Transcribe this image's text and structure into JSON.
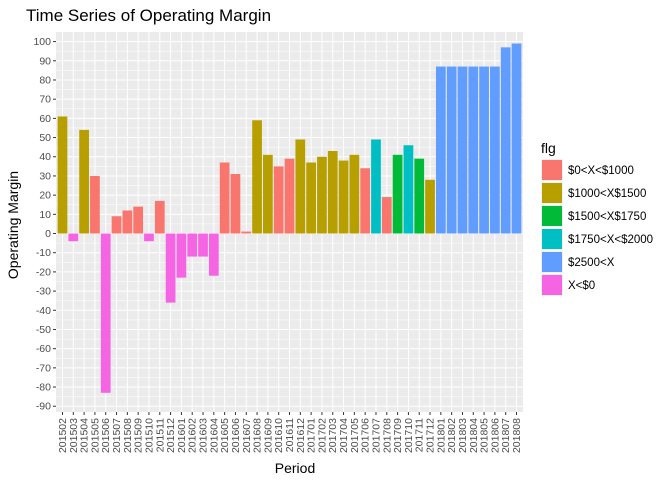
{
  "chart_data": {
    "type": "bar",
    "title": "Time Series of Operating Margin",
    "xlabel": "Period",
    "ylabel": "Operating Margin",
    "ylim": [
      -93,
      105
    ],
    "yticks": [
      -90,
      -80,
      -70,
      -60,
      -50,
      -40,
      -30,
      -20,
      -10,
      0,
      10,
      20,
      30,
      40,
      50,
      60,
      70,
      80,
      90,
      100
    ],
    "grid": true,
    "legend_title": "flg",
    "legend_position": "right",
    "legend": [
      {
        "label": "$0<X<$1000",
        "color": "#F8766D"
      },
      {
        "label": "$1000<X$1500",
        "color": "#B79F00"
      },
      {
        "label": "$1500<X$1750",
        "color": "#00BA38"
      },
      {
        "label": "$1750<X<$2000",
        "color": "#00BFC4"
      },
      {
        "label": "$2500<X",
        "color": "#619CFF"
      },
      {
        "label": "X<$0",
        "color": "#F564E3"
      }
    ],
    "categories": [
      "201502",
      "201503",
      "201504",
      "201505",
      "201506",
      "201507",
      "201508",
      "201509",
      "201510",
      "201511",
      "201512",
      "201601",
      "201602",
      "201603",
      "201604",
      "201605",
      "201606",
      "201607",
      "201608",
      "201609",
      "201610",
      "201611",
      "201612",
      "201701",
      "201702",
      "201703",
      "201704",
      "201705",
      "201706",
      "201707",
      "201708",
      "201709",
      "201710",
      "201711",
      "201712",
      "201801",
      "201802",
      "201803",
      "201804",
      "201805",
      "201806",
      "201807",
      "201808"
    ],
    "tick_labels": [
      "201502",
      "201503",
      "201504",
      "201505",
      "201506",
      "201507",
      "201508",
      "201509",
      "201510",
      "201511",
      "201512",
      "201601",
      "201602",
      "201603",
      "201604",
      "201605",
      "201606",
      "201607",
      "201608",
      "201609",
      "201610",
      "201611",
      "201612",
      "201701",
      "201702",
      "201703",
      "201704",
      "201705",
      "201706",
      "201707",
      "201708",
      "201709",
      "201710",
      "201711",
      "201712",
      "201801",
      "201802",
      "201803",
      "201804",
      "201805",
      "201806",
      "201807",
      "201808"
    ],
    "values": [
      61,
      -4,
      54,
      30,
      -83,
      9,
      12,
      14,
      -4,
      17,
      -36,
      -23,
      -12,
      -12,
      -22,
      37,
      31,
      1,
      59,
      41,
      35,
      39,
      49,
      37,
      40,
      43,
      38,
      41,
      34,
      49,
      19,
      41,
      46,
      39,
      28,
      87,
      87,
      87,
      87,
      87,
      87,
      97,
      99
    ],
    "groups": [
      1,
      5,
      1,
      0,
      5,
      0,
      0,
      0,
      5,
      0,
      5,
      5,
      5,
      5,
      5,
      0,
      0,
      0,
      1,
      1,
      0,
      0,
      1,
      1,
      1,
      1,
      1,
      1,
      0,
      3,
      0,
      2,
      3,
      2,
      1,
      4,
      4,
      4,
      4,
      4,
      4,
      4,
      4
    ]
  }
}
